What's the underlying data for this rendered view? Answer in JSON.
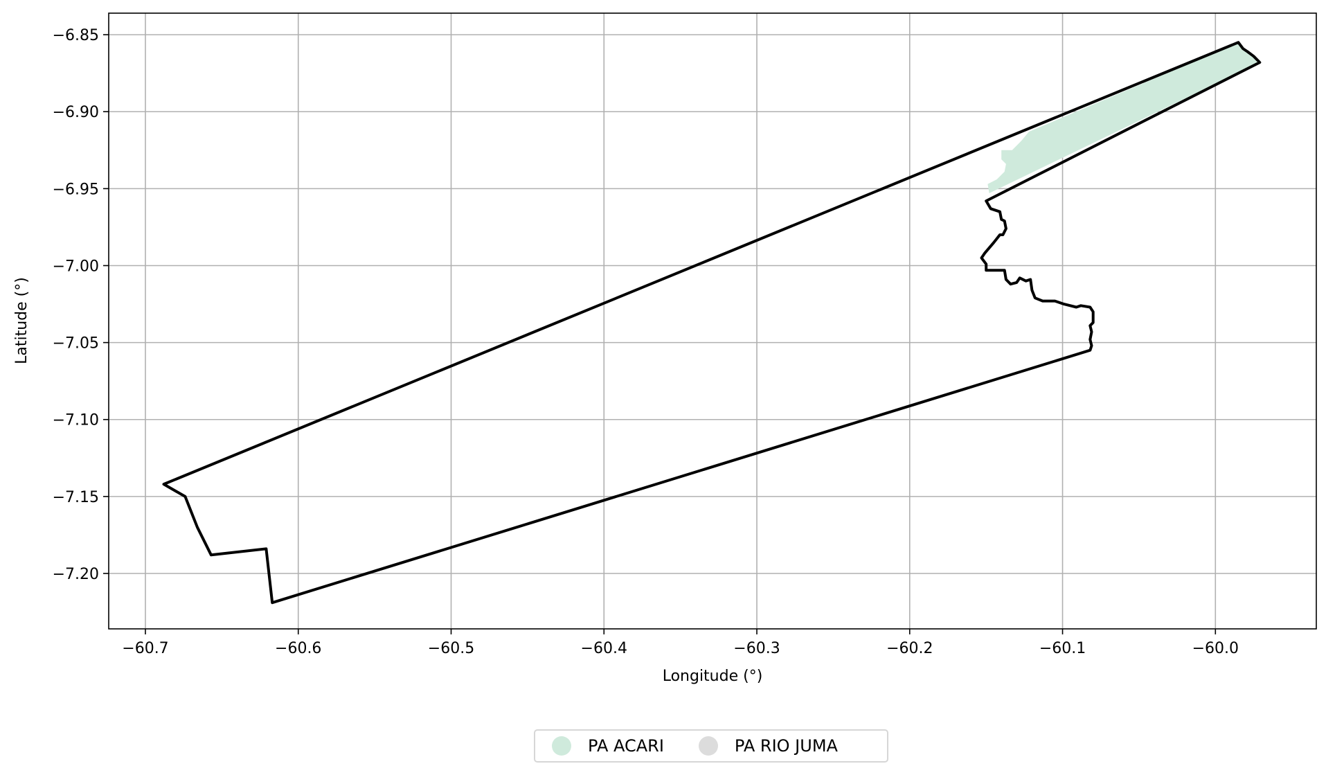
{
  "chart_data": {
    "type": "map",
    "xlabel": "Longitude (°)",
    "ylabel": "Latitude (°)",
    "xlim": [
      -60.724,
      -59.934
    ],
    "ylim": [
      -7.236,
      -6.836
    ],
    "xticks": [
      -60.7,
      -60.6,
      -60.5,
      -60.4,
      -60.3,
      -60.2,
      -60.1,
      -60.0
    ],
    "xtick_labels": [
      "−60.7",
      "−60.6",
      "−60.5",
      "−60.4",
      "−60.3",
      "−60.2",
      "−60.1",
      "−60.0"
    ],
    "yticks": [
      -6.85,
      -6.9,
      -6.95,
      -7.0,
      -7.05,
      -7.1,
      -7.15,
      -7.2
    ],
    "ytick_labels": [
      "−6.85",
      "−6.90",
      "−6.95",
      "−7.00",
      "−7.05",
      "−7.10",
      "−7.15",
      "−7.20"
    ],
    "grid": true,
    "legend_position": "bottom-center",
    "series": [
      {
        "name": "PA ACARI",
        "color": "#cfeadc",
        "polygon": [
          [
            -60.122,
            -6.913
          ],
          [
            -59.984,
            -6.855
          ],
          [
            -59.98,
            -6.86
          ],
          [
            -59.971,
            -6.868
          ],
          [
            -60.148,
            -6.953
          ],
          [
            -60.149,
            -6.947
          ],
          [
            -60.143,
            -6.944
          ],
          [
            -60.138,
            -6.939
          ],
          [
            -60.137,
            -6.934
          ],
          [
            -60.14,
            -6.931
          ],
          [
            -60.14,
            -6.925
          ],
          [
            -60.133,
            -6.925
          ],
          [
            -60.127,
            -6.919
          ],
          [
            -60.122,
            -6.913
          ]
        ]
      },
      {
        "name": "PA RIO JUMA",
        "color": "#dcdcdc",
        "outline": [
          [
            -60.688,
            -7.142
          ],
          [
            -59.985,
            -6.855
          ],
          [
            -59.982,
            -6.859
          ],
          [
            -59.979,
            -6.861
          ],
          [
            -59.975,
            -6.864
          ],
          [
            -59.971,
            -6.868
          ],
          [
            -60.15,
            -6.958
          ],
          [
            -60.147,
            -6.963
          ],
          [
            -60.141,
            -6.965
          ],
          [
            -60.14,
            -6.97
          ],
          [
            -60.138,
            -6.971
          ],
          [
            -60.137,
            -6.976
          ],
          [
            -60.139,
            -6.98
          ],
          [
            -60.141,
            -6.98
          ],
          [
            -60.145,
            -6.985
          ],
          [
            -60.151,
            -6.992
          ],
          [
            -60.153,
            -6.995
          ],
          [
            -60.15,
            -6.999
          ],
          [
            -60.15,
            -7.003
          ],
          [
            -60.145,
            -7.003
          ],
          [
            -60.138,
            -7.003
          ],
          [
            -60.137,
            -7.009
          ],
          [
            -60.134,
            -7.012
          ],
          [
            -60.13,
            -7.011
          ],
          [
            -60.128,
            -7.008
          ],
          [
            -60.124,
            -7.01
          ],
          [
            -60.121,
            -7.009
          ],
          [
            -60.12,
            -7.016
          ],
          [
            -60.118,
            -7.021
          ],
          [
            -60.113,
            -7.023
          ],
          [
            -60.105,
            -7.023
          ],
          [
            -60.099,
            -7.025
          ],
          [
            -60.091,
            -7.027
          ],
          [
            -60.088,
            -7.026
          ],
          [
            -60.082,
            -7.027
          ],
          [
            -60.08,
            -7.03
          ],
          [
            -60.08,
            -7.037
          ],
          [
            -60.082,
            -7.039
          ],
          [
            -60.081,
            -7.043
          ],
          [
            -60.082,
            -7.048
          ],
          [
            -60.081,
            -7.052
          ],
          [
            -60.082,
            -7.055
          ],
          [
            -60.617,
            -7.219
          ],
          [
            -60.621,
            -7.184
          ],
          [
            -60.657,
            -7.188
          ],
          [
            -60.666,
            -7.17
          ],
          [
            -60.67,
            -7.16
          ],
          [
            -60.674,
            -7.15
          ],
          [
            -60.681,
            -7.146
          ],
          [
            -60.688,
            -7.142
          ]
        ]
      }
    ]
  }
}
